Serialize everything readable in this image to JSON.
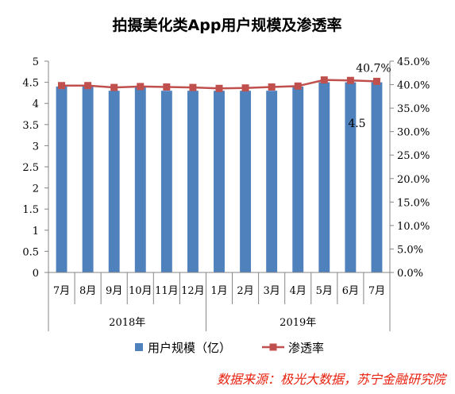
{
  "chart_data": {
    "type": "bar",
    "title": "拍摄美化类App用户规模及渗透率",
    "categories": [
      "7月",
      "8月",
      "9月",
      "10月",
      "11月",
      "12月",
      "1月",
      "2月",
      "3月",
      "4月",
      "5月",
      "6月",
      "7月"
    ],
    "groups": [
      {
        "label": "2018年",
        "count": 6
      },
      {
        "label": "2019年",
        "count": 7
      }
    ],
    "series": [
      {
        "name": "用户规模（亿）",
        "type": "bar",
        "axis": "left",
        "color": "#4f81bd",
        "values": [
          4.4,
          4.4,
          4.3,
          4.4,
          4.3,
          4.3,
          4.3,
          4.3,
          4.3,
          4.4,
          4.5,
          4.5,
          4.5
        ]
      },
      {
        "name": "渗透率",
        "type": "line",
        "axis": "right",
        "color": "#c0504d",
        "values": [
          39.8,
          39.8,
          39.4,
          39.6,
          39.5,
          39.4,
          39.2,
          39.3,
          39.5,
          39.7,
          41.0,
          40.9,
          40.7
        ]
      }
    ],
    "left_axis": {
      "ylim": [
        0,
        5
      ],
      "ticks": [
        "0",
        "0.5",
        "1",
        "1.5",
        "2",
        "2.5",
        "3",
        "3.5",
        "4",
        "4.5",
        "5"
      ]
    },
    "right_axis": {
      "ylim": [
        0,
        45
      ],
      "ticks": [
        "0.0%",
        "5.0%",
        "10.0%",
        "15.0%",
        "20.0%",
        "25.0%",
        "30.0%",
        "35.0%",
        "40.0%",
        "45.0%"
      ]
    },
    "annotations": {
      "bar_last": "4.5",
      "line_last": "40.7%"
    },
    "legend_position": "bottom"
  },
  "source": "数据来源：极光大数据，苏宁金融研究院"
}
